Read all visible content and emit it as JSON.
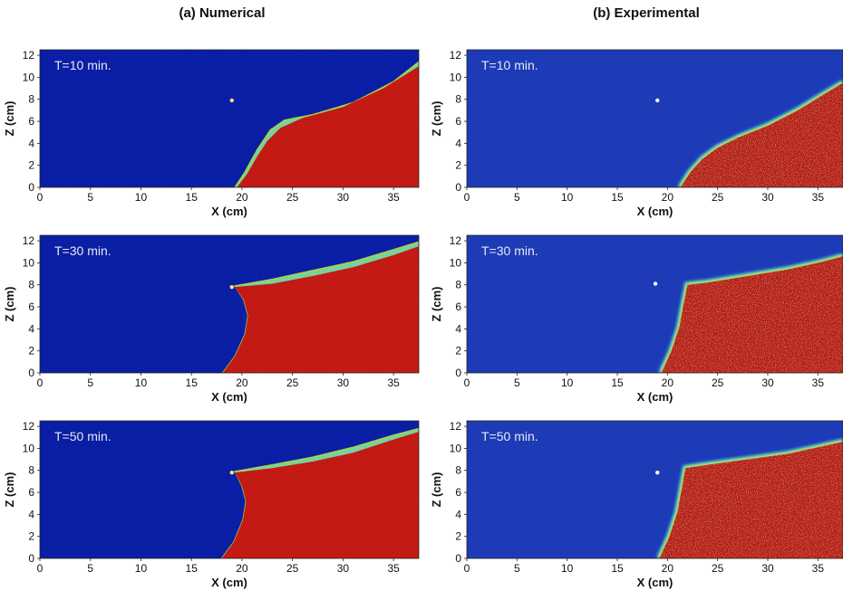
{
  "columns": [
    {
      "title": "(a) Numerical"
    },
    {
      "title": "(b) Experimental"
    }
  ],
  "colors": {
    "water_blue": "#0a1fa8",
    "water_blue_exp": "#1d3bb7",
    "salt_red": "#c71a14",
    "salt_red_exp": "#b11a12",
    "interface_cyan": "#3fd0d6",
    "interface_green": "#a6cf45",
    "interface_yellow": "#e9e33a",
    "injection_point": "#f6e07a"
  },
  "chart_data": [
    {
      "type": "heatmap",
      "id": "num-10",
      "panel": "(a) Numerical",
      "annotation": "T=10 min.",
      "xlabel": "X (cm)",
      "ylabel": "Z (cm)",
      "xlim": [
        0,
        37.5
      ],
      "ylim": [
        0,
        12.5
      ],
      "xticks": [
        0,
        5,
        10,
        15,
        20,
        25,
        30,
        35
      ],
      "yticks": [
        0,
        2,
        4,
        6,
        8,
        10,
        12
      ],
      "injection_point": {
        "x": 19,
        "z": 7.9
      },
      "interface": [
        [
          19.5,
          0
        ],
        [
          20.5,
          1.2
        ],
        [
          21.5,
          2.8
        ],
        [
          22.5,
          4.2
        ],
        [
          23.8,
          5.4
        ],
        [
          26,
          6.3
        ],
        [
          30,
          7.3
        ],
        [
          34,
          9
        ],
        [
          37.5,
          11
        ]
      ],
      "mixing_upper": [
        [
          19.3,
          0
        ],
        [
          20.3,
          1.4
        ],
        [
          21.5,
          3.4
        ],
        [
          22.8,
          5.2
        ],
        [
          24.2,
          6.1
        ],
        [
          27,
          6.6
        ],
        [
          31,
          7.7
        ],
        [
          35,
          9.6
        ],
        [
          37.5,
          11.4
        ]
      ]
    },
    {
      "type": "heatmap",
      "id": "num-30",
      "panel": "(a) Numerical",
      "annotation": "T=30 min.",
      "xlabel": "X (cm)",
      "ylabel": "Z (cm)",
      "xlim": [
        0,
        37.5
      ],
      "ylim": [
        0,
        12.5
      ],
      "xticks": [
        0,
        5,
        10,
        15,
        20,
        25,
        30,
        35
      ],
      "yticks": [
        0,
        2,
        4,
        6,
        8,
        10,
        12
      ],
      "injection_point": {
        "x": 19,
        "z": 7.8
      },
      "interface": [
        [
          18.1,
          0
        ],
        [
          19.3,
          1.5
        ],
        [
          20.3,
          3.5
        ],
        [
          20.6,
          5.2
        ],
        [
          20.2,
          6.6
        ],
        [
          19.3,
          7.8
        ],
        [
          23,
          8.1
        ],
        [
          27,
          8.8
        ],
        [
          31,
          9.6
        ],
        [
          35,
          10.7
        ],
        [
          37.5,
          11.5
        ]
      ],
      "mixing_upper": [
        [
          18.1,
          0
        ],
        [
          19.3,
          1.5
        ],
        [
          20.3,
          3.5
        ],
        [
          20.6,
          5.2
        ],
        [
          20.2,
          6.6
        ],
        [
          19.3,
          7.9
        ],
        [
          23,
          8.5
        ],
        [
          27,
          9.3
        ],
        [
          31,
          10.1
        ],
        [
          35,
          11.2
        ],
        [
          37.5,
          11.9
        ]
      ]
    },
    {
      "type": "heatmap",
      "id": "num-50",
      "panel": "(a) Numerical",
      "annotation": "T=50 min.",
      "xlabel": "X (cm)",
      "ylabel": "Z (cm)",
      "xlim": [
        0,
        37.5
      ],
      "ylim": [
        0,
        12.5
      ],
      "xticks": [
        0,
        5,
        10,
        15,
        20,
        25,
        30,
        35
      ],
      "yticks": [
        0,
        2,
        4,
        6,
        8,
        10,
        12
      ],
      "injection_point": {
        "x": 19,
        "z": 7.8
      },
      "interface": [
        [
          18,
          0
        ],
        [
          19.2,
          1.5
        ],
        [
          20.1,
          3.5
        ],
        [
          20.4,
          5.2
        ],
        [
          20,
          6.6
        ],
        [
          19.3,
          7.8
        ],
        [
          23,
          8.2
        ],
        [
          27,
          8.8
        ],
        [
          31,
          9.6
        ],
        [
          35,
          10.8
        ],
        [
          37.5,
          11.5
        ]
      ],
      "mixing_upper": [
        [
          18,
          0
        ],
        [
          19.2,
          1.5
        ],
        [
          20.1,
          3.5
        ],
        [
          20.4,
          5.2
        ],
        [
          20,
          6.6
        ],
        [
          19.3,
          7.9
        ],
        [
          23,
          8.5
        ],
        [
          27,
          9.2
        ],
        [
          31,
          10.1
        ],
        [
          35,
          11.2
        ],
        [
          37.5,
          11.8
        ]
      ]
    },
    {
      "type": "heatmap",
      "id": "exp-10",
      "panel": "(b) Experimental",
      "annotation": "T=10 min.",
      "xlabel": "X (cm)",
      "ylabel": "Z (cm)",
      "xlim": [
        0,
        37.5
      ],
      "ylim": [
        0,
        12.5
      ],
      "xticks": [
        0,
        5,
        10,
        15,
        20,
        25,
        30,
        35
      ],
      "yticks": [
        0,
        2,
        4,
        6,
        8,
        10,
        12
      ],
      "injection_point": {
        "x": 19,
        "z": 7.9
      },
      "interface": [
        [
          21.3,
          0
        ],
        [
          22.3,
          1.4
        ],
        [
          23.5,
          2.6
        ],
        [
          25,
          3.6
        ],
        [
          27,
          4.5
        ],
        [
          30,
          5.6
        ],
        [
          33,
          7
        ],
        [
          35.5,
          8.4
        ],
        [
          37.5,
          9.5
        ]
      ]
    },
    {
      "type": "heatmap",
      "id": "exp-30",
      "panel": "(b) Experimental",
      "annotation": "T=30 min.",
      "xlabel": "X (cm)",
      "ylabel": "Z (cm)",
      "xlim": [
        0,
        37.5
      ],
      "ylim": [
        0,
        12.5
      ],
      "xticks": [
        0,
        5,
        10,
        15,
        20,
        25,
        30,
        35
      ],
      "yticks": [
        0,
        2,
        4,
        6,
        8,
        10,
        12
      ],
      "injection_point": {
        "x": 18.8,
        "z": 8.1
      },
      "interface": [
        [
          19.4,
          0
        ],
        [
          20.4,
          2
        ],
        [
          21.2,
          4.2
        ],
        [
          21.6,
          6.2
        ],
        [
          22,
          8
        ],
        [
          24,
          8.2
        ],
        [
          28,
          8.8
        ],
        [
          32,
          9.4
        ],
        [
          35.5,
          10.1
        ],
        [
          37.5,
          10.6
        ]
      ]
    },
    {
      "type": "heatmap",
      "id": "exp-50",
      "panel": "(b) Experimental",
      "annotation": "T=50 min.",
      "xlabel": "X (cm)",
      "ylabel": "Z (cm)",
      "xlim": [
        0,
        37.5
      ],
      "ylim": [
        0,
        12.5
      ],
      "xticks": [
        0,
        5,
        10,
        15,
        20,
        25,
        30,
        35
      ],
      "yticks": [
        0,
        2,
        4,
        6,
        8,
        10,
        12
      ],
      "injection_point": {
        "x": 19,
        "z": 7.8
      },
      "interface": [
        [
          19.2,
          0
        ],
        [
          20.2,
          2
        ],
        [
          21,
          4.2
        ],
        [
          21.4,
          6.2
        ],
        [
          21.8,
          8.2
        ],
        [
          24,
          8.5
        ],
        [
          28,
          9
        ],
        [
          32,
          9.5
        ],
        [
          35.5,
          10.2
        ],
        [
          37.5,
          10.6
        ]
      ]
    }
  ]
}
